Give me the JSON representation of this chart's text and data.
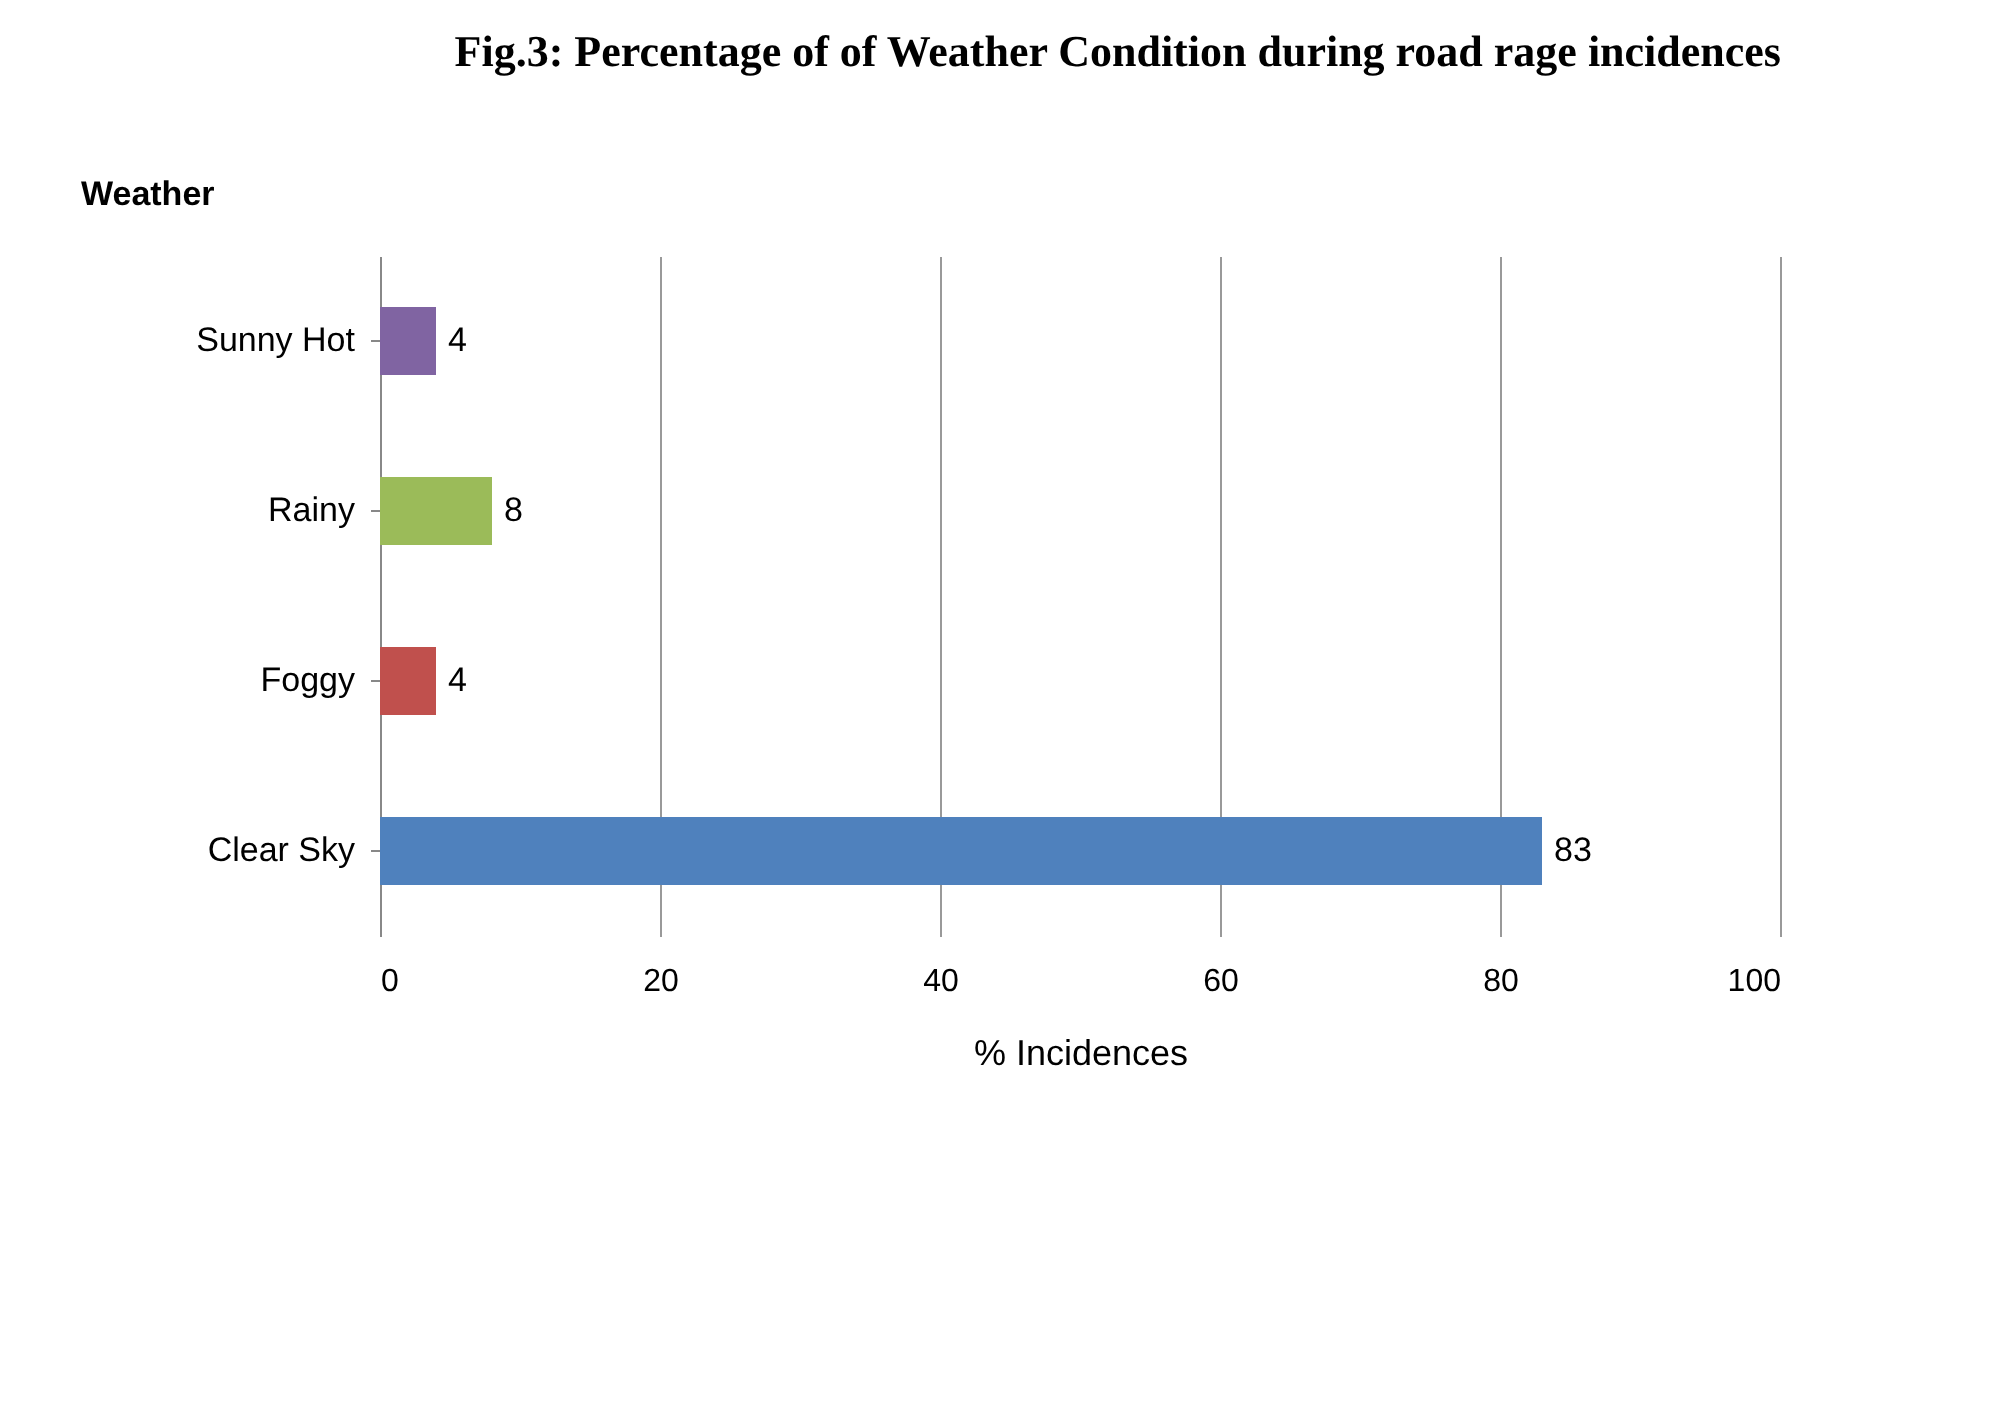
{
  "chart_data": {
    "type": "bar",
    "orientation": "horizontal",
    "title": "Fig.3: Percentage of of Weather Condition during road rage incidences",
    "xlabel": "%  Incidences",
    "ylabel": "Weather",
    "categories": [
      "Sunny Hot",
      "Rainy",
      "Foggy",
      "Clear Sky"
    ],
    "values": [
      4,
      8,
      4,
      83
    ],
    "colors": [
      "#8064a2",
      "#9bbb59",
      "#c0504d",
      "#4f81bd"
    ],
    "xlim": [
      0,
      100
    ],
    "xticks": [
      0,
      20,
      40,
      60,
      80,
      100
    ],
    "grid": "x",
    "data_labels": true
  }
}
